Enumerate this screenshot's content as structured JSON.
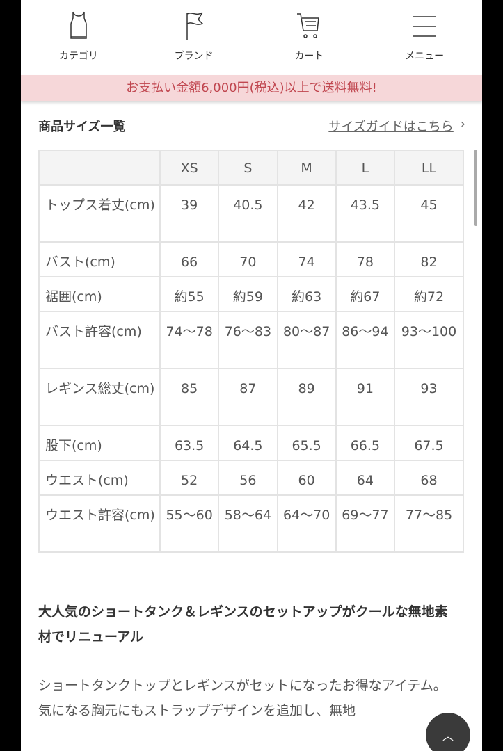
{
  "nav": {
    "items": [
      {
        "label": "カテゴリ",
        "icon": "tank-top-icon"
      },
      {
        "label": "ブランド",
        "icon": "flag-icon"
      },
      {
        "label": "カート",
        "icon": "cart-icon"
      },
      {
        "label": "メニュー",
        "icon": "menu-icon"
      }
    ]
  },
  "banner": {
    "text": "お支払い金額6,000円(税込)以上で送料無料!",
    "color": "#c0464f",
    "background": "#f6d7d9"
  },
  "size_section": {
    "title": "商品サイズ一覧",
    "guide_link": "サイズガイドはこちら",
    "chevron": "›"
  },
  "size_table": {
    "headers": [
      "",
      "XS",
      "S",
      "M",
      "L",
      "LL"
    ],
    "rows": [
      [
        "トップス着丈(cm)",
        "39",
        "40.5",
        "42",
        "43.5",
        "45"
      ],
      [
        "バスト(cm)",
        "66",
        "70",
        "74",
        "78",
        "82"
      ],
      [
        "裾囲(cm)",
        "約55",
        "約59",
        "約63",
        "約67",
        "約72"
      ],
      [
        "バスト許容(cm)",
        "74〜78",
        "76〜83",
        "80〜87",
        "86〜94",
        "93〜100"
      ],
      [
        "レギンス総丈(cm)",
        "85",
        "87",
        "89",
        "91",
        "93"
      ],
      [
        "股下(cm)",
        "63.5",
        "64.5",
        "65.5",
        "66.5",
        "67.5"
      ],
      [
        "ウエスト(cm)",
        "52",
        "56",
        "60",
        "64",
        "68"
      ],
      [
        "ウエスト許容(cm)",
        "55〜60",
        "58〜64",
        "64〜70",
        "69〜77",
        "77〜85"
      ]
    ]
  },
  "description": {
    "heading": "大人気のショートタンク＆レギンスのセットアップがクールな無地素材でリニューアル",
    "body": "ショートタンクトップとレギンスがセットになったお得なアイテム。\n気になる胸元にもストラップデザインを追加し、無地"
  },
  "back_to_top": {
    "icon": "chevron-up-icon",
    "glyph": "︿"
  }
}
